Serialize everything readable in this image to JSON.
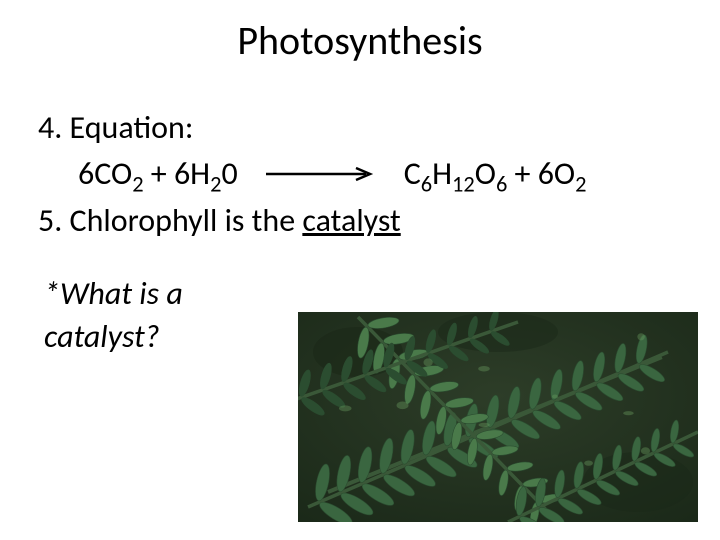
{
  "title": "Photosynthesis",
  "point4_label": "4. Equation:",
  "equation": {
    "left_prefix": "6CO",
    "left_sub1": "2",
    "left_mid": " + 6H",
    "left_sub2": "2",
    "left_suffix": "0",
    "arrow_color": "#000000",
    "right_prefix": "C",
    "right_sub1": "6",
    "right_mid1": "H",
    "right_sub2": "12",
    "right_mid2": "O",
    "right_sub3": "6",
    "right_plus": " + 6O",
    "right_sub4": "2"
  },
  "point5_prefix": "5. Chlorophyll is the ",
  "point5_underlined": "catalyst",
  "question_line1": "*What is a",
  "question_line2": "catalyst?",
  "plant_colors": {
    "bg_dark": "#1a2818",
    "bg_mid": "#2d3d28",
    "leaf_light": "#4a7a4a",
    "leaf_mid": "#3a6640",
    "leaf_dark": "#2b4d30",
    "stem": "#3a5838",
    "highlight": "#6a9a60"
  }
}
